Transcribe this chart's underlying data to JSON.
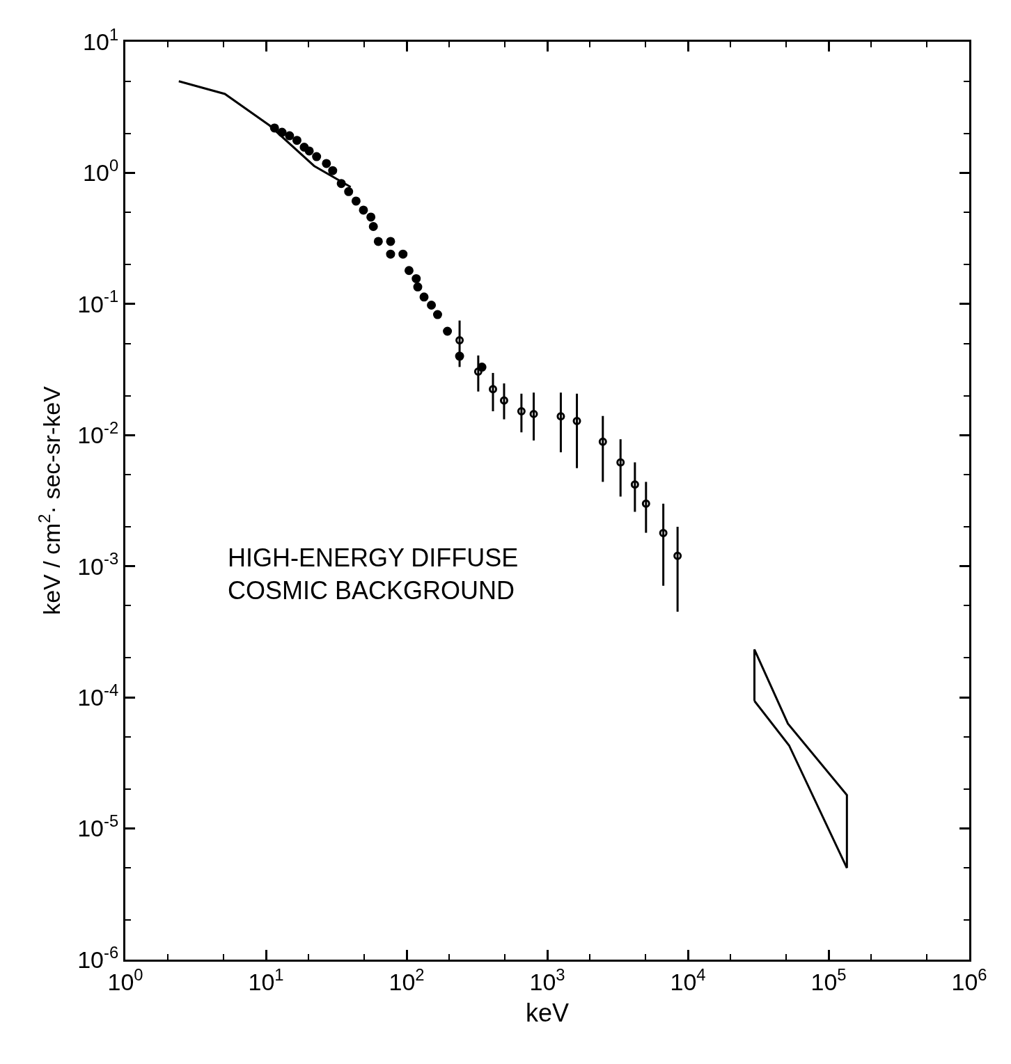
{
  "chart_data": {
    "type": "scatter",
    "xlabel": "keV",
    "ylabel": "keV / cm$^{2}$· sec-sr-keV",
    "log": "xy",
    "grid": false,
    "xlim": [
      1,
      1000000
    ],
    "ylim": [
      1e-06,
      10
    ],
    "xticks": [
      {
        "value": 1,
        "label": "10$^{0}$"
      },
      {
        "value": 10,
        "label": "10$^{1}$"
      },
      {
        "value": 100,
        "label": "10$^{2}$"
      },
      {
        "value": 1000,
        "label": "10$^{3}$"
      },
      {
        "value": 10000,
        "label": "10$^{4}$"
      },
      {
        "value": 100000,
        "label": "10$^{5}$"
      },
      {
        "value": 1000000,
        "label": "10$^{6}$"
      }
    ],
    "yticks": [
      {
        "value": 1e-06,
        "label": "10$^{-6}$"
      },
      {
        "value": 1e-05,
        "label": "10$^{-5}$"
      },
      {
        "value": 0.0001,
        "label": "10$^{-4}$"
      },
      {
        "value": 0.001,
        "label": "10$^{-3}$"
      },
      {
        "value": 0.01,
        "label": "10$^{-2}$"
      },
      {
        "value": 0.1,
        "label": "10$^{-1}$"
      },
      {
        "value": 1,
        "label": "10$^{0}$"
      },
      {
        "value": 10,
        "label": "10$^{1}$"
      }
    ],
    "annotations": [
      "HIGH-ENERGY DIFFUSE\nCOSMIC BACKGROUND"
    ],
    "series": [
      {
        "type": "line",
        "color": "#000000",
        "marker": "none",
        "x": [
          2.4,
          5.1,
          10.6,
          22,
          40
        ],
        "values": [
          5.0,
          4.0,
          2.3,
          1.13,
          0.78
        ]
      },
      {
        "color": "#000000",
        "marker": "circle",
        "x": [
          11.5,
          13.0,
          14.7,
          16.6,
          18.7,
          20.3,
          22.9,
          26.9,
          29.8,
          34.3,
          38.7,
          43.7,
          49.3,
          55.7,
          58.0,
          62.9,
          76.9,
          76.9,
          94.2,
          104,
          117,
          120,
          133,
          150,
          166,
          195,
          238,
          343
        ],
        "values": [
          2.2,
          2.04,
          1.92,
          1.77,
          1.57,
          1.47,
          1.33,
          1.18,
          1.04,
          0.83,
          0.72,
          0.61,
          0.52,
          0.46,
          0.39,
          0.3,
          0.3,
          0.24,
          0.24,
          0.18,
          0.156,
          0.135,
          0.113,
          0.098,
          0.083,
          0.062,
          0.04,
          0.033
        ]
      },
      {
        "color": "#000000",
        "marker": "circle",
        "x": [
          238,
          323,
          411,
          493,
          655,
          801,
          1248,
          1624,
          2483,
          3318,
          4198,
          5035,
          6683,
          8440
        ],
        "values": [
          0.0529,
          0.0305,
          0.0224,
          0.0184,
          0.0152,
          0.0145,
          0.0139,
          0.0128,
          0.0089,
          0.0062,
          0.0042,
          0.003,
          0.00179,
          0.0012
        ],
        "errors": [
          [
            0.0331,
            0.0748
          ],
          [
            0.0215,
            0.0405
          ],
          [
            0.0152,
            0.0298
          ],
          [
            0.0132,
            0.0248
          ],
          [
            0.0105,
            0.0207
          ],
          [
            0.0091,
            0.0211
          ],
          [
            0.0074,
            0.0211
          ],
          [
            0.0056,
            0.0207
          ],
          [
            0.0044,
            0.014
          ],
          [
            0.0034,
            0.0093
          ],
          [
            0.0026,
            0.0062
          ],
          [
            0.0018,
            0.0044
          ],
          [
            0.00071,
            0.003
          ],
          [
            0.00045,
            0.002
          ]
        ]
      },
      {
        "type": "line",
        "color": "#000000",
        "marker": "none",
        "x": [
          29700,
          29700,
          51400,
          135000,
          135000
        ],
        "values": [
          9.4e-05,
          0.000232,
          6.3e-05,
          1.8e-05,
          5e-06
        ]
      },
      {
        "type": "line",
        "color": "#000000",
        "marker": "none",
        "x": [
          29700,
          52400,
          135000
        ],
        "values": [
          9.4e-05,
          4.3e-05,
          5e-06
        ]
      }
    ]
  }
}
